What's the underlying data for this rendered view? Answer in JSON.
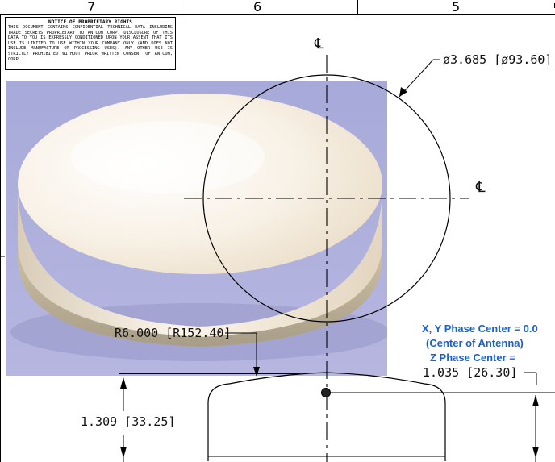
{
  "title_block": {
    "zones": [
      "7",
      "6",
      "5"
    ]
  },
  "notice": {
    "title": "NOTICE OF PROPRIETARY RIGHTS",
    "body": "THIS DOCUMENT CONTAINS CONFIDENTIAL TECHNICAL DATA INCLUDING TRADE SECRETS PROPRIETARY TO ANTCOM CORP. DISCLOSURE OF THIS DATA TO YOU IS EXPRESSLY CONDITIONED UPON YOUR ASSENT THAT ITS USE IS LIMITED TO USE WITHIN YOUR COMPANY ONLY (AND DOES NOT INCLUDE MANUFACTURE OR PROCESSING USES). ANY OTHER USE IS STRICTLY PROHIBITED WITHOUT PRIOR WRITTEN CONSENT OF ANTCOM, CORP."
  },
  "drawing": {
    "centerline_symbol": "℄",
    "diameter_dim": "ø3.685 [ø93.60]",
    "radius_dim": "R6.000 [R152.40]",
    "height_dim": "1.309 [33.25]",
    "phase_notes": {
      "xy": "X, Y Phase Center = 0.0",
      "center": "(Center of Antenna)",
      "z": "Z Phase Center ="
    },
    "z_dim": "1.035 [26.30]"
  },
  "colors": {
    "note_blue": "#1a5fd6",
    "photo_bg": "#a9acdc",
    "dome": "#f6ecdc"
  }
}
